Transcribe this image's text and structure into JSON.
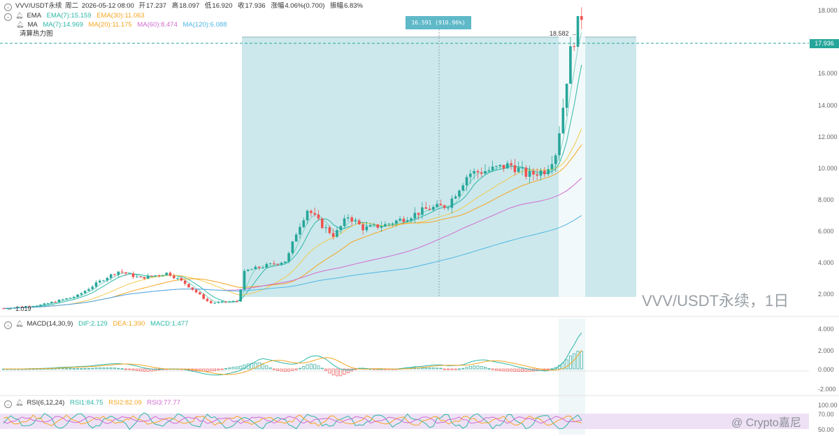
{
  "header": {
    "symbol": "VVV/USDT永续",
    "day": "周二",
    "datetime": "2026-05-12 08:00",
    "open_label": "开",
    "open": "17.237",
    "high_label": "高",
    "high": "18.097",
    "low_label": "低",
    "low": "16.920",
    "close_label": "收",
    "close": "17.936",
    "change_label": "涨幅",
    "change": "4.06%(0.700)",
    "amp_label": "振幅",
    "amp": "6.83%"
  },
  "ema": {
    "label": "EMA",
    "ema7": "EMA(7):15.159",
    "ema30": "EMA(30):11.063"
  },
  "ma": {
    "label": "MA",
    "ma7": "MA(7):14.969",
    "ma20": "MA(20):11.175",
    "ma60": "MA(60):8.474",
    "ma120": "MA(120):6.088"
  },
  "heatmap_label": "清算热力图",
  "macd": {
    "label": "MACD(14,30,9)",
    "dif": "DIF:2.129",
    "dea": "DEA:1.390",
    "macd": "MACD:1.477"
  },
  "rsi": {
    "label": "RSI(6,12,24)",
    "rsi1": "RSI1:84.75",
    "rsi2": "RSI2:82.09",
    "rsi3": "RSI3:77.77"
  },
  "measure_tag": "16.591 (910.96%)",
  "high_marker": "18.582",
  "low_marker": "1.019",
  "last_price": "17.936",
  "watermark": "VVV/USDT永续，1日",
  "brand": "@ Crypto嘉尼",
  "price_axis": [
    "18.000",
    "16.000",
    "14.000",
    "12.000",
    "10.000",
    "8.000",
    "6.000",
    "4.000",
    "2.000"
  ],
  "macd_axis": [
    "4.000",
    "2.000",
    "0.000",
    "-2.000"
  ],
  "rsi_axis": [
    "100.00",
    "70.00",
    "50.00"
  ],
  "colors": {
    "up": "#26a69a",
    "down": "#ef5350",
    "ema7": "#2cb7a6",
    "ema30": "#f5a623",
    "ma7": "#7ed3c5",
    "ma20": "#f2c94c",
    "ma60": "#d16bd0",
    "ma120": "#4fb6e4",
    "measure": "#cbe8ec",
    "rsi1": "#2cb7a6",
    "rsi2": "#f5a623",
    "rsi3": "#d16bd0"
  }
}
